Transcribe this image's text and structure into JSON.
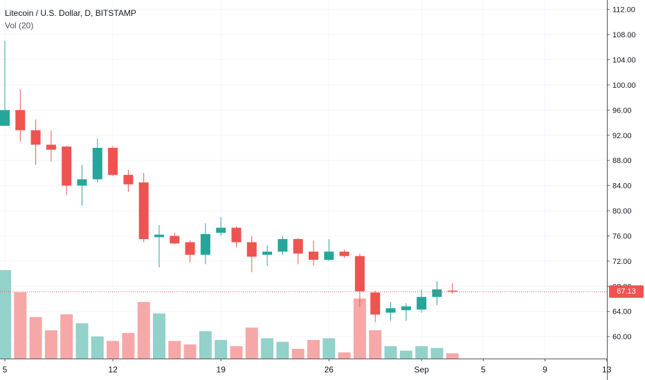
{
  "chart_data": {
    "type": "candlestick",
    "title": "Litecoin / U.S. Dollar, D, BITSTAMP",
    "volume_label": "Vol (20)",
    "last_price_label": "67.13",
    "last_price": 67.13,
    "ylim": [
      56.5,
      113.5
    ],
    "y_ticks": [
      60.0,
      64.0,
      68.0,
      72.0,
      76.0,
      80.0,
      84.0,
      88.0,
      92.0,
      96.0,
      100.0,
      104.0,
      108.0,
      112.0
    ],
    "y_tick_labels": [
      "60.00",
      "64.00",
      "68.00",
      "72.00",
      "76.00",
      "80.00",
      "84.00",
      "88.00",
      "92.00",
      "96.00",
      "100.00",
      "104.00",
      "108.00",
      "112.00"
    ],
    "x_tick_labels": [
      {
        "label": "5",
        "bar": 0
      },
      {
        "label": "12",
        "bar": 7
      },
      {
        "label": "19",
        "bar": 14
      },
      {
        "label": "26",
        "bar": 21
      },
      {
        "label": "Sep",
        "bar": 27
      },
      {
        "label": "5",
        "bar": 31
      },
      {
        "label": "9",
        "bar": 35
      },
      {
        "label": "13",
        "bar": 39
      }
    ],
    "total_slots": 40,
    "volume_max": 100,
    "candles": [
      {
        "o": 93.5,
        "h": 107.0,
        "l": 93.5,
        "c": 96.0,
        "v": 100
      },
      {
        "o": 96.0,
        "h": 99.3,
        "l": 91.0,
        "c": 92.8,
        "v": 75
      },
      {
        "o": 92.8,
        "h": 94.5,
        "l": 87.3,
        "c": 90.5,
        "v": 47
      },
      {
        "o": 90.5,
        "h": 92.8,
        "l": 87.8,
        "c": 89.7,
        "v": 32
      },
      {
        "o": 90.2,
        "h": 90.3,
        "l": 82.5,
        "c": 84.0,
        "v": 50
      },
      {
        "o": 84.0,
        "h": 87.3,
        "l": 80.8,
        "c": 85.0,
        "v": 40
      },
      {
        "o": 85.0,
        "h": 91.5,
        "l": 84.5,
        "c": 90.0,
        "v": 25
      },
      {
        "o": 90.0,
        "h": 90.3,
        "l": 85.5,
        "c": 85.7,
        "v": 20
      },
      {
        "o": 85.7,
        "h": 86.5,
        "l": 83.0,
        "c": 84.2,
        "v": 29
      },
      {
        "o": 84.5,
        "h": 86.0,
        "l": 75.0,
        "c": 75.5,
        "v": 64
      },
      {
        "o": 75.8,
        "h": 77.7,
        "l": 71.0,
        "c": 76.2,
        "v": 51
      },
      {
        "o": 76.0,
        "h": 76.5,
        "l": 74.7,
        "c": 74.8,
        "v": 20
      },
      {
        "o": 75.0,
        "h": 75.3,
        "l": 71.8,
        "c": 73.0,
        "v": 16
      },
      {
        "o": 73.0,
        "h": 78.0,
        "l": 71.5,
        "c": 76.3,
        "v": 31
      },
      {
        "o": 76.5,
        "h": 79.0,
        "l": 76.0,
        "c": 77.3,
        "v": 21
      },
      {
        "o": 77.3,
        "h": 77.5,
        "l": 74.2,
        "c": 75.0,
        "v": 14
      },
      {
        "o": 75.0,
        "h": 76.0,
        "l": 70.2,
        "c": 72.7,
        "v": 35
      },
      {
        "o": 73.0,
        "h": 74.5,
        "l": 71.2,
        "c": 73.5,
        "v": 23
      },
      {
        "o": 73.5,
        "h": 76.0,
        "l": 73.0,
        "c": 75.5,
        "v": 19
      },
      {
        "o": 75.5,
        "h": 75.7,
        "l": 71.5,
        "c": 73.2,
        "v": 11
      },
      {
        "o": 73.5,
        "h": 75.3,
        "l": 71.3,
        "c": 72.2,
        "v": 21
      },
      {
        "o": 72.2,
        "h": 75.5,
        "l": 72.0,
        "c": 73.5,
        "v": 23
      },
      {
        "o": 73.5,
        "h": 73.8,
        "l": 72.5,
        "c": 72.8,
        "v": 7
      },
      {
        "o": 72.8,
        "h": 73.2,
        "l": 64.7,
        "c": 67.2,
        "v": 68
      },
      {
        "o": 67.0,
        "h": 67.3,
        "l": 62.3,
        "c": 63.5,
        "v": 32
      },
      {
        "o": 63.8,
        "h": 65.5,
        "l": 62.5,
        "c": 64.5,
        "v": 14
      },
      {
        "o": 64.2,
        "h": 65.3,
        "l": 62.5,
        "c": 64.8,
        "v": 9
      },
      {
        "o": 64.3,
        "h": 67.5,
        "l": 63.8,
        "c": 66.3,
        "v": 14
      },
      {
        "o": 66.3,
        "h": 68.8,
        "l": 65.0,
        "c": 67.5,
        "v": 12
      },
      {
        "o": 67.3,
        "h": 68.5,
        "l": 66.8,
        "c": 67.13,
        "v": 6
      }
    ],
    "colors": {
      "up": "#26a69a",
      "down": "#ef5350",
      "up_volume": "#93d1cb",
      "down_volume": "#f5a8a7",
      "grid": "#f0f3fa",
      "axis_text": "#131722",
      "axis_line": "#555555",
      "last_price": "#ef5350"
    },
    "grid": true
  }
}
